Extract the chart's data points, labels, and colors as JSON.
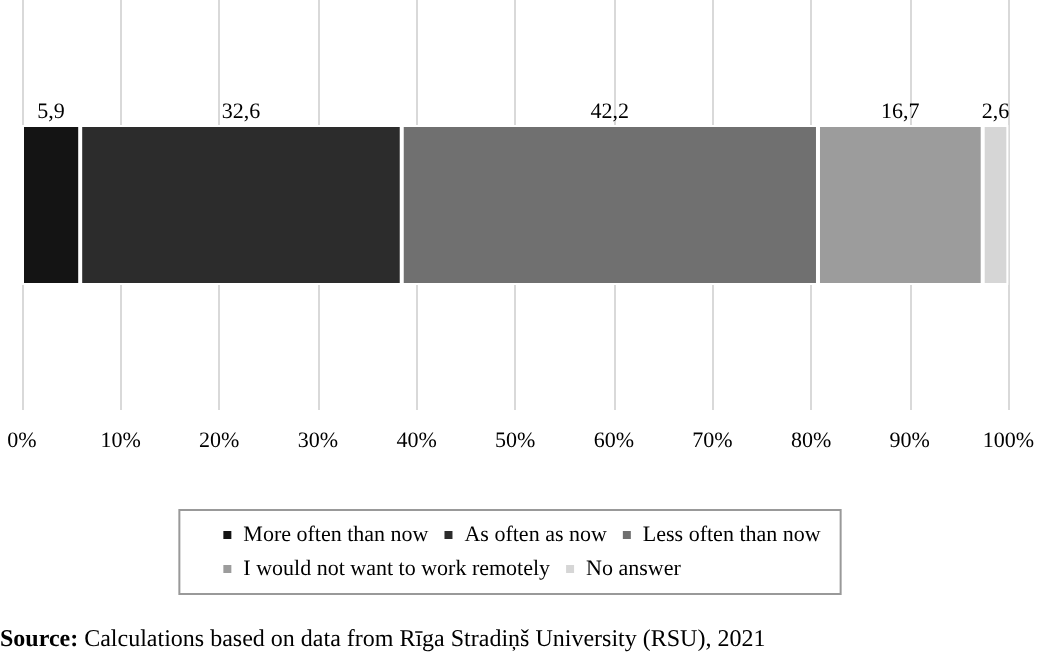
{
  "chart_data": {
    "type": "bar",
    "orientation": "horizontal",
    "stacked": true,
    "categories": [
      null
    ],
    "series": [
      {
        "name": "More often than now",
        "color": "#141414",
        "values": [
          5.9
        ],
        "value_labels": [
          "5,9"
        ]
      },
      {
        "name": "As often as now",
        "color": "#2c2c2c",
        "values": [
          32.6
        ],
        "value_labels": [
          "32,6"
        ]
      },
      {
        "name": "Less often than now",
        "color": "#707070",
        "values": [
          42.2
        ],
        "value_labels": [
          "42,2"
        ]
      },
      {
        "name": "I would not want to work remotely",
        "color": "#9c9c9c",
        "values": [
          16.7
        ],
        "value_labels": [
          "16,7"
        ]
      },
      {
        "name": "No answer",
        "color": "#d6d6d6",
        "values": [
          2.6
        ],
        "value_labels": [
          "2,6"
        ]
      }
    ],
    "xlim": [
      0,
      100
    ],
    "xticks": [
      {
        "value": 0,
        "label": "0%"
      },
      {
        "value": 10,
        "label": "10%"
      },
      {
        "value": 20,
        "label": "20%"
      },
      {
        "value": 30,
        "label": "30%"
      },
      {
        "value": 40,
        "label": "40%"
      },
      {
        "value": 50,
        "label": "50%"
      },
      {
        "value": 60,
        "label": "60%"
      },
      {
        "value": 70,
        "label": "70%"
      },
      {
        "value": 80,
        "label": "80%"
      },
      {
        "value": 90,
        "label": "90%"
      },
      {
        "value": 100,
        "label": "100%"
      }
    ],
    "grid": "x",
    "legend": "bottom",
    "annotations": [
      "Source: Calculations based on data from Rīga Stradiņš University (RSU), 2021"
    ]
  }
}
